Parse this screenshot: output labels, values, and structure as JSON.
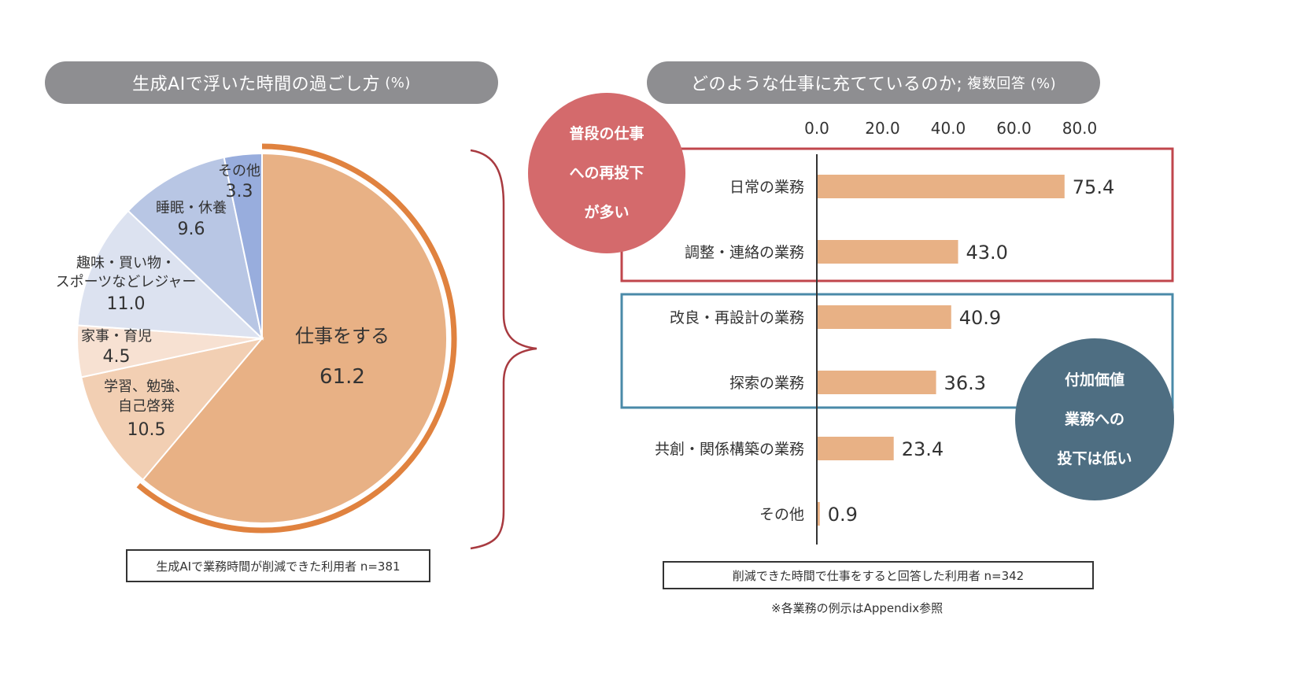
{
  "left_panel": {
    "title": "生成AIで浮いた時間の過ごし方",
    "title_unit": "(%)",
    "sample_note": "生成AIで業務時間が削減できた利用者 n=381"
  },
  "right_panel": {
    "title": "どのような仕事に充てているのか;",
    "title_sub": "複数回答 (%)",
    "sample_note": "削減できた時間で仕事をすると回答した利用者 n=342",
    "footnote": "※各業務の例示はAppendix参照",
    "callout_red": [
      "普段の仕事",
      "への再投下",
      "が多い"
    ],
    "callout_blue": [
      "付加価値",
      "業務への",
      "投下は低い"
    ]
  },
  "colors": {
    "pill_bg": "#8e8e91",
    "work_slice": "#e8b185",
    "work_highlight_arc": "#e0823f",
    "study_slice": "#f2cfb3",
    "housework_slice": "#f7e1d2",
    "hobby_slice": "#dce2f0",
    "sleep_slice": "#b8c6e4",
    "other_slice": "#98addd",
    "bar": "#e8b185",
    "brace": "#a83a40",
    "red_box": "#c0464c",
    "blue_box": "#4a8aa8",
    "bubble_red": "#d46a6c",
    "bubble_blue": "#4e6e82"
  },
  "chart_data": [
    {
      "type": "pie",
      "title": "生成AIで浮いた時間の過ごし方 (%)",
      "start_angle": "12 o'clock, clockwise",
      "slices": [
        {
          "label": "仕事をする",
          "value": 61.2,
          "highlighted": true
        },
        {
          "label": "学習、勉強、自己啓発",
          "value": 10.5
        },
        {
          "label": "家事・育児",
          "value": 4.5
        },
        {
          "label": "趣味・買い物・スポーツなどレジャー",
          "value": 11.0
        },
        {
          "label": "睡眠・休養",
          "value": 9.6
        },
        {
          "label": "その他",
          "value": 3.3
        }
      ],
      "note": "生成AIで業務時間が削減できた利用者 n=381"
    },
    {
      "type": "bar",
      "orientation": "horizontal",
      "title": "どのような仕事に充てているのか; 複数回答 (%)",
      "categories": [
        "日常の業務",
        "調整・連絡の業務",
        "改良・再設計の業務",
        "探索の業務",
        "共創・関係構築の業務",
        "その他"
      ],
      "values": [
        75.4,
        43.0,
        40.9,
        36.3,
        23.4,
        0.9
      ],
      "value_labels": [
        "75.4",
        "43.0",
        "40.9",
        "36.3",
        "23.4",
        "0.9"
      ],
      "xticks": [
        "0.0",
        "20.0",
        "40.0",
        "60.0",
        "80.0"
      ],
      "xlim": [
        0,
        80
      ],
      "xaxis_position": "top",
      "grid": false,
      "groups": [
        {
          "categories": [
            "日常の業務",
            "調整・連絡の業務"
          ],
          "box": "red",
          "annotation": "普段の仕事への再投下が多い"
        },
        {
          "categories": [
            "改良・再設計の業務",
            "探索の業務"
          ],
          "box": "blue",
          "annotation": "付加価値業務への投下は低い"
        }
      ],
      "note": "削減できた時間で仕事をすると回答した利用者 n=342"
    }
  ]
}
